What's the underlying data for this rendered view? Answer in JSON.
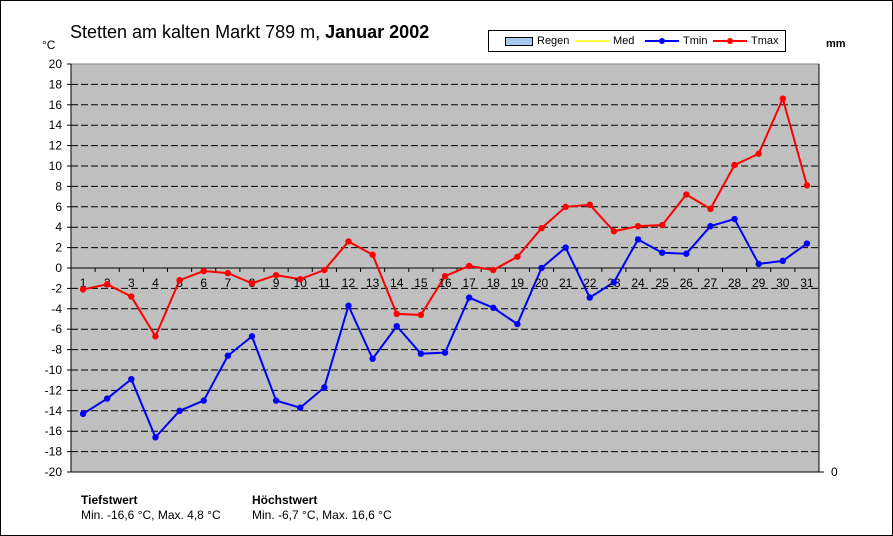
{
  "title_station": "Stetten am kalten Markt 789 m,",
  "title_period": "Januar 2002",
  "unit_left": "°C",
  "unit_right": "mm",
  "legend": [
    {
      "label": "Regen",
      "color": "#a6caf0",
      "kind": "bar"
    },
    {
      "label": "Med",
      "color": "#ffff00",
      "kind": "line"
    },
    {
      "label": "Tmin",
      "color": "#0000ff",
      "kind": "line"
    },
    {
      "label": "Tmax",
      "color": "#ff0000",
      "kind": "line"
    }
  ],
  "stats": {
    "low_heading": "Tiefstwert",
    "low_text": "Min. -16,6 °C, Max. 4,8 °C",
    "high_heading": "Höchstwert",
    "high_text": "Min. -6,7 °C, Max. 16,6 °C"
  },
  "chart_data": {
    "type": "line",
    "x": [
      1,
      2,
      3,
      4,
      5,
      6,
      7,
      8,
      9,
      10,
      11,
      12,
      13,
      14,
      15,
      16,
      17,
      18,
      19,
      20,
      21,
      22,
      23,
      24,
      25,
      26,
      27,
      28,
      29,
      30,
      31
    ],
    "ylim": [
      -20,
      20
    ],
    "yticks": [
      20,
      18,
      16,
      14,
      12,
      10,
      8,
      6,
      4,
      2,
      0,
      -2,
      -4,
      -6,
      -8,
      -10,
      -12,
      -14,
      -16,
      -18,
      -20
    ],
    "y2_ticks": [
      "0"
    ],
    "grid": true,
    "background": "#c0c0c0",
    "legend_position": "top-right",
    "series": [
      {
        "name": "Tmin",
        "color": "#0000ff",
        "values": [
          -14.3,
          -12.8,
          -10.9,
          -16.6,
          -14.0,
          -13.0,
          -8.6,
          -6.7,
          -13.0,
          -13.7,
          -11.7,
          -3.7,
          -8.9,
          -5.7,
          -8.4,
          -8.3,
          -2.9,
          -3.9,
          -5.5,
          0.0,
          2.0,
          -2.9,
          -1.4,
          2.8,
          1.5,
          1.4,
          4.1,
          4.8,
          0.4,
          0.7,
          2.4
        ]
      },
      {
        "name": "Tmax",
        "color": "#ff0000",
        "values": [
          -2.1,
          -1.6,
          -2.8,
          -6.7,
          -1.2,
          -0.3,
          -0.5,
          -1.5,
          -0.7,
          -1.1,
          -0.2,
          2.6,
          1.3,
          -4.5,
          -4.6,
          -0.8,
          0.2,
          -0.2,
          1.1,
          3.9,
          6.0,
          6.2,
          3.6,
          4.1,
          4.2,
          7.2,
          5.8,
          10.1,
          11.2,
          16.6,
          8.1
        ]
      }
    ]
  }
}
